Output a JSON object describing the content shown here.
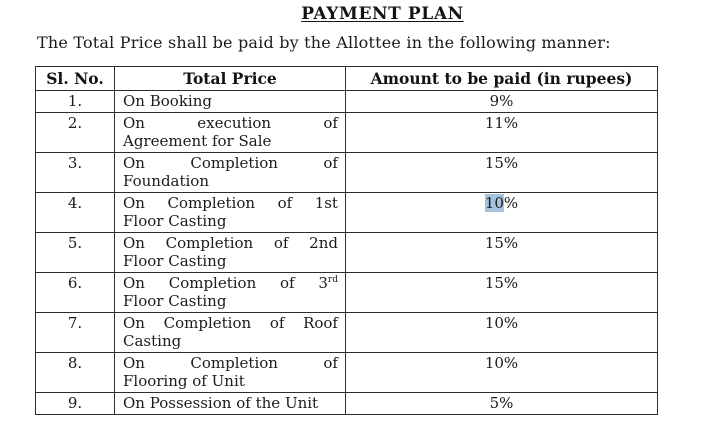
{
  "page": {
    "title": "PAYMENT PLAN",
    "intro": "The Total Price shall be paid by the Allottee in the following manner:"
  },
  "table": {
    "headers": [
      "Sl. No.",
      "Total Price",
      "Amount to be paid (in rupees)"
    ],
    "highlight_color": "#a5c3dd",
    "rows": [
      {
        "sl": "1.",
        "price_lines": [
          {
            "text": "On Booking",
            "justify": false
          }
        ],
        "amount": "9%"
      },
      {
        "sl": "2.",
        "price_lines": [
          {
            "text": "On execution of",
            "justify": true
          },
          {
            "text": "Agreement for Sale",
            "justify": false
          }
        ],
        "amount": "11%"
      },
      {
        "sl": "3.",
        "price_lines": [
          {
            "text": "On Completion of",
            "justify": true
          },
          {
            "text": "Foundation",
            "justify": false
          }
        ],
        "amount": "15%"
      },
      {
        "sl": "4.",
        "price_lines": [
          {
            "text": "On Completion of 1st",
            "justify": true
          },
          {
            "text": "Floor Casting",
            "justify": false
          }
        ],
        "amount": "10%",
        "amount_highlighted_part": "10"
      },
      {
        "sl": "5.",
        "price_lines": [
          {
            "text": "On Completion of 2nd",
            "justify": true
          },
          {
            "text": "Floor Casting",
            "justify": false
          }
        ],
        "amount": "15%"
      },
      {
        "sl": "6.",
        "price_lines": [
          {
            "text": "On Completion of 3rd",
            "justify": true,
            "superscript": {
              "word": "3rd",
              "base": "3",
              "tail": "rd"
            }
          },
          {
            "text": "Floor Casting",
            "justify": false
          }
        ],
        "amount": "15%"
      },
      {
        "sl": "7.",
        "price_lines": [
          {
            "text": "On Completion of Roof",
            "justify": true
          },
          {
            "text": "Casting",
            "justify": false
          }
        ],
        "amount": "10%"
      },
      {
        "sl": "8.",
        "price_lines": [
          {
            "text": "On Completion of",
            "justify": true
          },
          {
            "text": "Flooring of Unit",
            "justify": false
          }
        ],
        "amount": "10%"
      },
      {
        "sl": "9.",
        "price_lines": [
          {
            "text": "On Possession of the Unit",
            "justify": false
          }
        ],
        "amount": "5%"
      }
    ]
  }
}
